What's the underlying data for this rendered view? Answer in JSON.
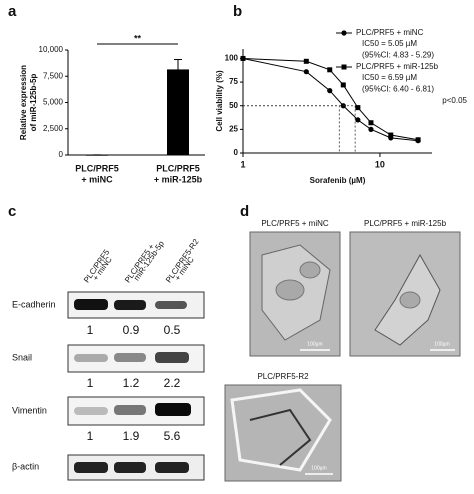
{
  "panel_labels": [
    "a",
    "b",
    "c",
    "d"
  ],
  "chart_data": [
    {
      "type": "bar",
      "ylabel": [
        "Relative expression",
        "of miR-125b-5p"
      ],
      "categories": [
        [
          "PLC/PRF5",
          "+ miNC"
        ],
        [
          "PLC/PRF5",
          "+ miR-125b"
        ]
      ],
      "values": [
        10,
        8150
      ],
      "errors": [
        5,
        950
      ],
      "color": "#000000",
      "ylim": [
        0,
        10000
      ],
      "yticks": [
        0,
        {
          "value": 2500,
          "label": "2,500"
        },
        {
          "value": 5000,
          "label": "5,000"
        },
        {
          "value": 7500,
          "label": "7,500"
        },
        {
          "value": 10000,
          "label": "10,000"
        }
      ],
      "significance": "**"
    },
    {
      "type": "line",
      "xlabel": "Sorafenib (µM)",
      "ylabel": "Cell viability (%)",
      "xscale": "log",
      "xlim": [
        1,
        24
      ],
      "xticks": [
        1,
        10
      ],
      "ylim": [
        0,
        110
      ],
      "yticks": [
        0,
        25,
        50,
        75,
        100
      ],
      "x": [
        1,
        2.9,
        4.3,
        5.4,
        6.9,
        8.6,
        12,
        19
      ],
      "ic50_level": 50,
      "series": [
        {
          "name": "PLC/PRF5 + miNC",
          "marker": "circle",
          "color": "#000000",
          "values": [
            100,
            86,
            66,
            50,
            35,
            25,
            16,
            13
          ],
          "details": [
            "IC50 = 5.05 µM",
            "(95%CI: 4.83 - 5.29)"
          ],
          "ic50": 5.05
        },
        {
          "name": "PLC/PRF5 + miR-125b",
          "marker": "square",
          "color": "#000000",
          "values": [
            100,
            97,
            88,
            72,
            48,
            32,
            19,
            14
          ],
          "details": [
            "IC50 = 6.59 µM",
            "(95%CI: 6.40 - 6.81)"
          ],
          "ic50": 6.59
        }
      ],
      "annotation": "p<0.05"
    }
  ],
  "blot": {
    "columns": [
      [
        "PLC/PRF5",
        "+ miNC"
      ],
      [
        "PLC/PRF5 +",
        "miR-125b-5p"
      ],
      [
        "PLC/PRF5-R2",
        "+ miNC"
      ]
    ],
    "rows": [
      {
        "name": "E-cadherin",
        "values": [
          1,
          0.9,
          0.5
        ]
      },
      {
        "name": "Snail",
        "values": [
          1,
          1.2,
          2.2
        ]
      },
      {
        "name": "Vimentin",
        "values": [
          1,
          1.9,
          5.6
        ]
      },
      {
        "name": "β-actin",
        "values": []
      }
    ]
  },
  "micrographs": [
    {
      "title": "PLC/PRF5 + miNC",
      "scale": "100µm"
    },
    {
      "title": "PLC/PRF5 + miR-125b",
      "scale": "100µm"
    },
    {
      "title": "PLC/PRF5-R2",
      "scale": "100µm"
    }
  ]
}
